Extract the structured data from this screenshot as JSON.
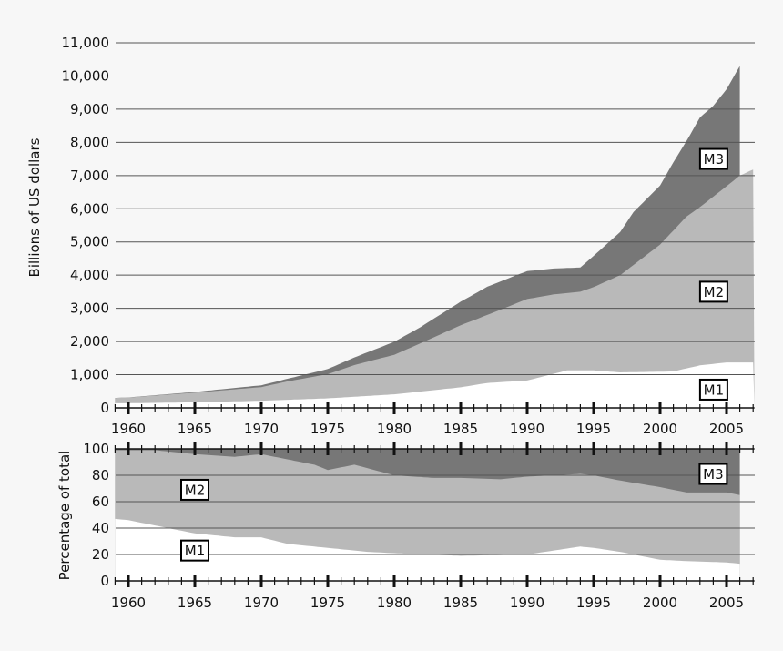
{
  "colors": {
    "background": "#f7f7f7",
    "m1": "#ffffff",
    "m2": "#b9b9b9",
    "m3": "#777777",
    "grid": "#555555",
    "axis": "#111111"
  },
  "chart_data": [
    {
      "type": "area",
      "title": "",
      "xlabel": "",
      "ylabel": "Billions of US dollars",
      "stacked": true,
      "xlim": [
        1959,
        2007.1
      ],
      "ylim": [
        0,
        11000
      ],
      "yticks": [
        0,
        1000,
        2000,
        3000,
        4000,
        5000,
        6000,
        7000,
        8000,
        9000,
        10000,
        11000
      ],
      "ytick_labels": [
        "0",
        "1,000",
        "2,000",
        "3,000",
        "4,000",
        "5,000",
        "6,000",
        "7,000",
        "8,000",
        "9,000",
        "10,000",
        "11,000"
      ],
      "xticks": [
        1960,
        1965,
        1970,
        1975,
        1980,
        1985,
        1990,
        1995,
        2000,
        2005
      ],
      "xtick_labels": [
        "1960",
        "1965",
        "1970",
        "1975",
        "1980",
        "1985",
        "1990",
        "1995",
        "2000",
        "2005"
      ],
      "grid": true,
      "series_labels": [
        {
          "name": "M1",
          "x": 2004,
          "y": 550
        },
        {
          "name": "M2",
          "x": 2004,
          "y": 3500
        },
        {
          "name": "M3",
          "x": 2004,
          "y": 7500
        }
      ],
      "series": [
        {
          "name": "M1",
          "x": [
            1959,
            1960,
            1965,
            1970,
            1975,
            1980,
            1985,
            1987,
            1990,
            1993,
            1995,
            1997,
            2000,
            2001,
            2002,
            2003,
            2005,
            2006,
            2007.1
          ],
          "values": [
            140,
            141,
            168,
            215,
            287,
            408,
            620,
            750,
            825,
            1130,
            1130,
            1070,
            1090,
            1100,
            1190,
            1280,
            1370,
            1370,
            1370
          ]
        },
        {
          "name": "M2",
          "x": [
            1959,
            1960,
            1965,
            1970,
            1972,
            1975,
            1977,
            1980,
            1982,
            1985,
            1987,
            1990,
            1992,
            1994,
            1995,
            1997,
            2000,
            2002,
            2003,
            2005,
            2006,
            2007.1
          ],
          "values": [
            297,
            312,
            459,
            626,
            800,
            1016,
            1290,
            1600,
            1950,
            2490,
            2800,
            3280,
            3420,
            3500,
            3640,
            4000,
            4920,
            5770,
            6050,
            6680,
            7000,
            7200
          ]
        },
        {
          "name": "M3",
          "x": [
            1959,
            1960,
            1965,
            1970,
            1972,
            1975,
            1977,
            1980,
            1982,
            1985,
            1987,
            1989,
            1990,
            1992,
            1994,
            1995,
            1997,
            1998,
            2000,
            2001,
            2002,
            2003,
            2004,
            2005,
            2006
          ],
          "values": [
            300,
            315,
            480,
            680,
            880,
            1170,
            1520,
            1990,
            2440,
            3200,
            3650,
            3970,
            4120,
            4200,
            4230,
            4580,
            5300,
            5900,
            6700,
            7400,
            8050,
            8750,
            9100,
            9600,
            10300
          ]
        }
      ]
    },
    {
      "type": "area",
      "title": "",
      "xlabel": "",
      "ylabel": "Percentage of total",
      "stacked": true,
      "xlim": [
        1959,
        2007.1
      ],
      "ylim": [
        0,
        100
      ],
      "data_end": 2006,
      "yticks": [
        0,
        20,
        40,
        60,
        80,
        100
      ],
      "ytick_labels": [
        "0",
        "20",
        "40",
        "60",
        "80",
        "100"
      ],
      "xticks": [
        1960,
        1965,
        1970,
        1975,
        1980,
        1985,
        1990,
        1995,
        2000,
        2005
      ],
      "xtick_labels": [
        "1960",
        "1965",
        "1970",
        "1975",
        "1980",
        "1985",
        "1990",
        "1995",
        "2000",
        "2005"
      ],
      "grid": true,
      "series_labels": [
        {
          "name": "M1",
          "x": 1965,
          "y": 23
        },
        {
          "name": "M2",
          "x": 1965,
          "y": 69
        },
        {
          "name": "M3",
          "x": 2004,
          "y": 81
        }
      ],
      "series": [
        {
          "name": "M1 share",
          "x": [
            1959,
            1960,
            1962,
            1965,
            1968,
            1970,
            1972,
            1975,
            1978,
            1980,
            1985,
            1990,
            1992,
            1994,
            1995,
            1997,
            2000,
            2002,
            2005,
            2006
          ],
          "values": [
            47,
            46,
            42,
            36,
            33,
            33,
            28,
            25,
            22,
            21,
            19,
            20,
            23,
            26,
            25,
            22,
            16,
            15,
            14,
            13
          ]
        },
        {
          "name": "M1+M2 share",
          "x": [
            1959,
            1962,
            1965,
            1968,
            1970,
            1972,
            1974,
            1975,
            1977,
            1980,
            1983,
            1985,
            1988,
            1990,
            1992,
            1994,
            1995,
            1997,
            2000,
            2002,
            2005,
            2006
          ],
          "values": [
            99,
            99,
            96,
            94,
            96,
            92,
            88,
            84,
            88,
            80,
            78,
            78,
            77,
            79,
            80,
            81,
            80,
            76,
            71,
            67,
            67,
            65
          ]
        },
        {
          "name": "Total (M3)",
          "x": [
            1959,
            2006
          ],
          "values": [
            100,
            100
          ]
        }
      ]
    }
  ]
}
